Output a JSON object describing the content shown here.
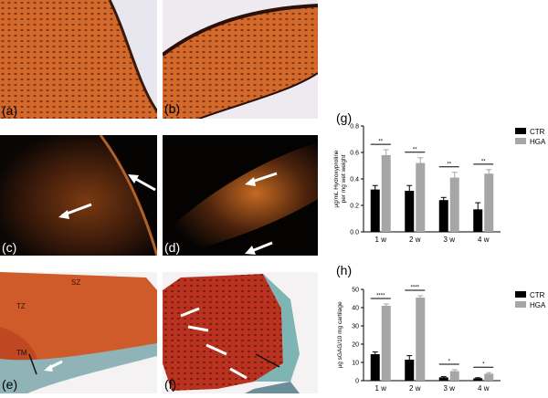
{
  "panels": {
    "a": "(a)",
    "b": "(b)",
    "c": "(c)",
    "d": "(d)",
    "e": "(e)",
    "f": "(f)"
  },
  "annotations": {
    "sz": "SZ",
    "tz": "TZ",
    "tm": "TM"
  },
  "colors": {
    "ctr": "#000000",
    "hga": "#a6a6a6",
    "histo_orange": "#d2692a",
    "histo_dark": "#1a0d08",
    "histo_red": "#b52a22",
    "histo_teal": "#7fb4b4"
  },
  "chart_data": [
    {
      "panel_label": "(g)",
      "type": "bar",
      "ylabel": "µg/mL Hydroxyproline per mg wet weight",
      "categories": [
        "1 w",
        "2 w",
        "3 w",
        "4 w"
      ],
      "ylim": [
        0,
        0.8
      ],
      "yticks": [
        "0.0",
        "0.2",
        "0.4",
        "0.6",
        "0.8"
      ],
      "series": [
        {
          "name": "CTR",
          "values": [
            0.32,
            0.31,
            0.24,
            0.17
          ],
          "errors": [
            0.03,
            0.04,
            0.02,
            0.05
          ]
        },
        {
          "name": "HGA",
          "values": [
            0.58,
            0.52,
            0.41,
            0.44
          ],
          "errors": [
            0.04,
            0.04,
            0.04,
            0.03
          ]
        }
      ],
      "significance": [
        "**",
        "**",
        "**",
        "**"
      ],
      "legend": "top-right"
    },
    {
      "panel_label": "(h)",
      "type": "bar",
      "ylabel": "µg sGAG/10 mg cartilage",
      "categories": [
        "1 w",
        "2 w",
        "3 w",
        "4 w"
      ],
      "ylim": [
        0,
        50
      ],
      "yticks": [
        "0",
        "10",
        "20",
        "30",
        "40",
        "50"
      ],
      "series": [
        {
          "name": "CTR",
          "values": [
            14.5,
            11.5,
            1.8,
            1.3
          ],
          "errors": [
            1.2,
            2.2,
            0.4,
            0.3
          ]
        },
        {
          "name": "HGA",
          "values": [
            41,
            45.5,
            5.2,
            3.8
          ],
          "errors": [
            1.0,
            1.0,
            0.8,
            0.6
          ]
        }
      ],
      "significance": [
        "****",
        "****",
        "*",
        "*"
      ],
      "legend": "top-right"
    }
  ]
}
